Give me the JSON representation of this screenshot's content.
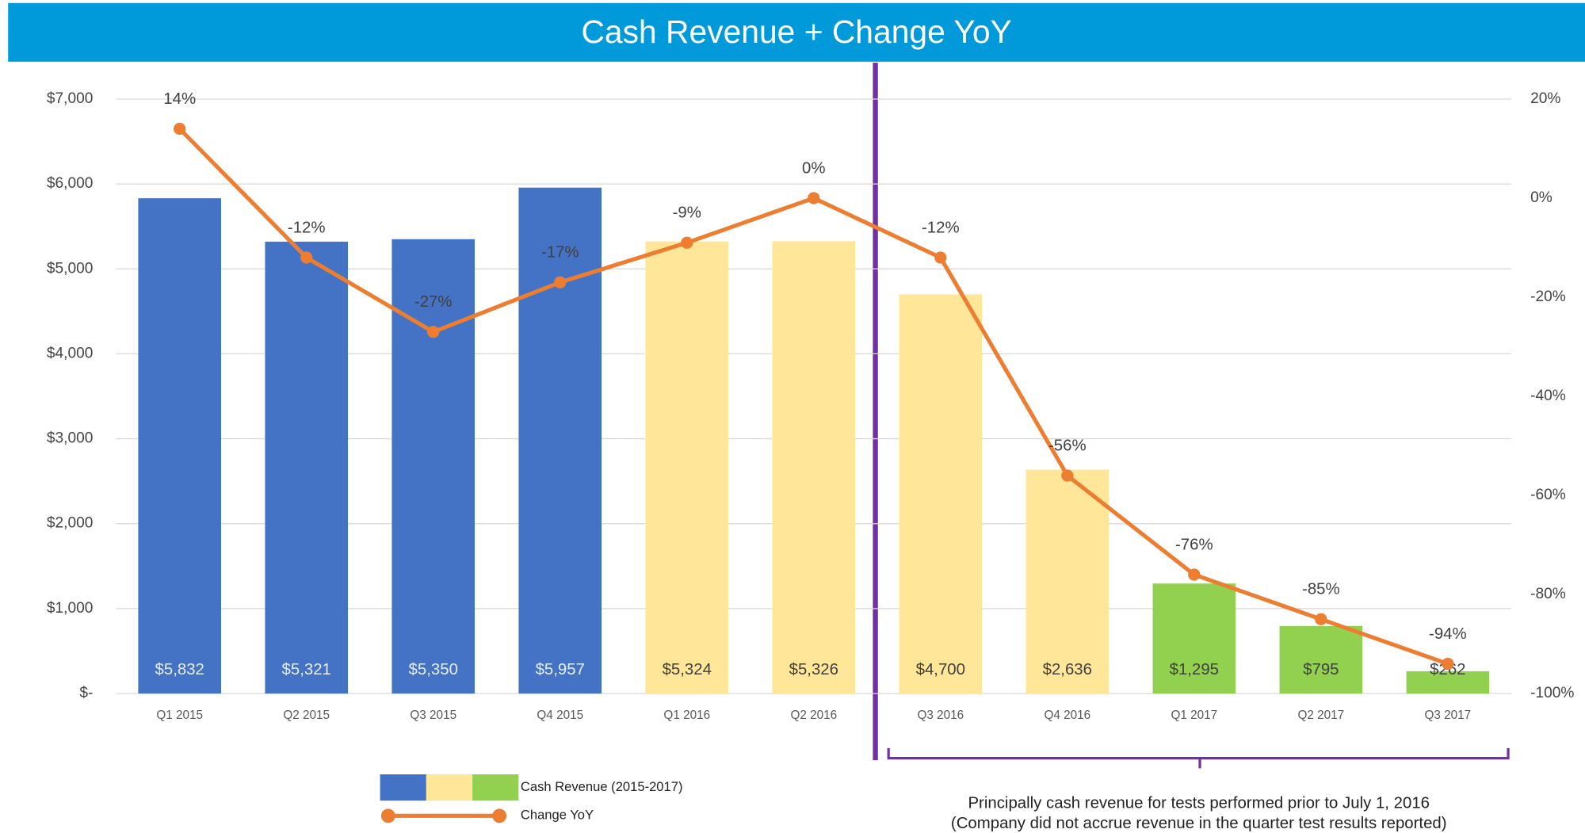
{
  "chart_data": {
    "type": "bar+line",
    "title": "Cash Revenue + Change YoY",
    "categories": [
      "Q1 2015",
      "Q2 2015",
      "Q3 2015",
      "Q4 2015",
      "Q1 2016",
      "Q2 2016",
      "Q3 2016",
      "Q4 2016",
      "Q1 2017",
      "Q2 2017",
      "Q3 2017"
    ],
    "series": [
      {
        "name": "Cash Revenue (2015-2017)",
        "type": "bar",
        "colors": [
          "#4472c4",
          "#4472c4",
          "#4472c4",
          "#4472c4",
          "#ffe699",
          "#ffe699",
          "#ffe699",
          "#ffe699",
          "#92d050",
          "#92d050",
          "#92d050"
        ],
        "values": [
          5832,
          5321,
          5350,
          5957,
          5324,
          5326,
          4700,
          2636,
          1295,
          795,
          262
        ],
        "value_labels": [
          "$5,832",
          "$5,321",
          "$5,350",
          "$5,957",
          "$5,324",
          "$5,326",
          "$4,700",
          "$2,636",
          "$1,295",
          "$795",
          "$262"
        ]
      },
      {
        "name": "Change YoY",
        "type": "line",
        "axis": "y2",
        "color": "#ed7d31",
        "values": [
          14,
          -12,
          -27,
          -17,
          -9,
          0,
          -12,
          -56,
          -76,
          -85,
          -94
        ],
        "value_labels": [
          "14%",
          "-12%",
          "-27%",
          "-17%",
          "-9%",
          "0%",
          "-12%",
          "-56%",
          "-76%",
          "-85%",
          "-94%"
        ]
      }
    ],
    "ylim": [
      0,
      7000
    ],
    "yticks": [
      {
        "value": 0,
        "label": "$-"
      },
      {
        "value": 1000,
        "label": "$1,000"
      },
      {
        "value": 2000,
        "label": "$2,000"
      },
      {
        "value": 3000,
        "label": "$3,000"
      },
      {
        "value": 4000,
        "label": "$4,000"
      },
      {
        "value": 5000,
        "label": "$5,000"
      },
      {
        "value": 6000,
        "label": "$6,000"
      },
      {
        "value": 7000,
        "label": "$7,000"
      }
    ],
    "y2lim": [
      -100,
      20
    ],
    "y2ticks": [
      {
        "value": 20,
        "label": "20%"
      },
      {
        "value": 0,
        "label": "0%"
      },
      {
        "value": -20,
        "label": "-20%"
      },
      {
        "value": -40,
        "label": "-40%"
      },
      {
        "value": -60,
        "label": "-60%"
      },
      {
        "value": -80,
        "label": "-80%"
      },
      {
        "value": -100,
        "label": "-100%"
      }
    ],
    "grid": true,
    "annotation": [
      "Principally cash revenue for tests performed prior to July 1, 2016",
      "(Company did not accrue revenue in the quarter test results reported)"
    ]
  }
}
